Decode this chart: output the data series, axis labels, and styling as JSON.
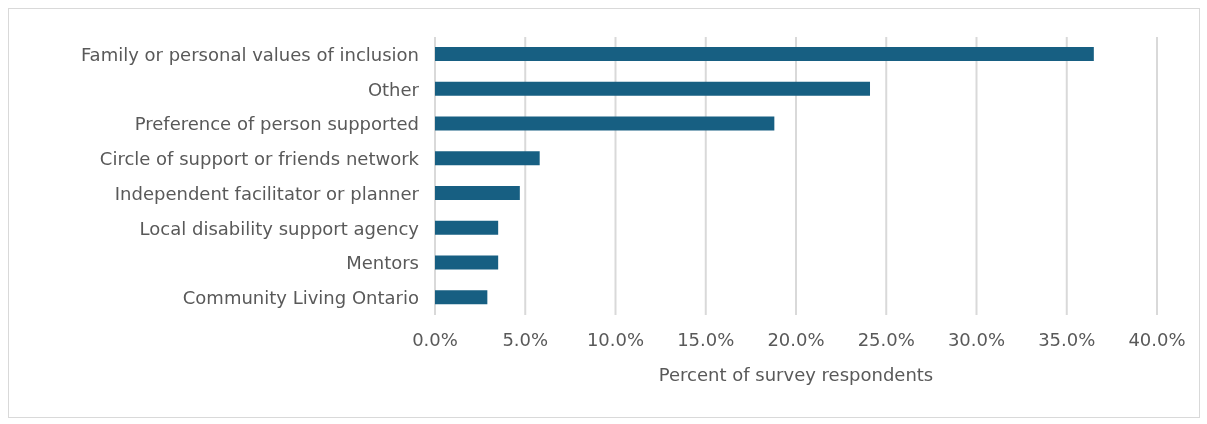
{
  "chart_data": {
    "type": "bar",
    "orientation": "horizontal",
    "categories": [
      "Family or personal values of inclusion",
      "Other",
      "Preference of person supported",
      "Circle of support or friends network",
      "Independent facilitator or planner",
      "Local disability support agency",
      "Mentors",
      "Community Living Ontario"
    ],
    "values": [
      36.5,
      24.1,
      18.8,
      5.8,
      4.7,
      3.5,
      3.5,
      2.9
    ],
    "color": "#175f82",
    "xlabel": "Percent of survey respondents",
    "xlim": [
      0,
      40
    ],
    "xticks": [
      {
        "value": 0,
        "label": "0.0%"
      },
      {
        "value": 5,
        "label": "5.0%"
      },
      {
        "value": 10,
        "label": "10.0%"
      },
      {
        "value": 15,
        "label": "15.0%"
      },
      {
        "value": 20,
        "label": "20.0%"
      },
      {
        "value": 25,
        "label": "25.0%"
      },
      {
        "value": 30,
        "label": "30.0%"
      },
      {
        "value": 35,
        "label": "35.0%"
      },
      {
        "value": 40,
        "label": "40.0%"
      }
    ],
    "grid": "x"
  }
}
